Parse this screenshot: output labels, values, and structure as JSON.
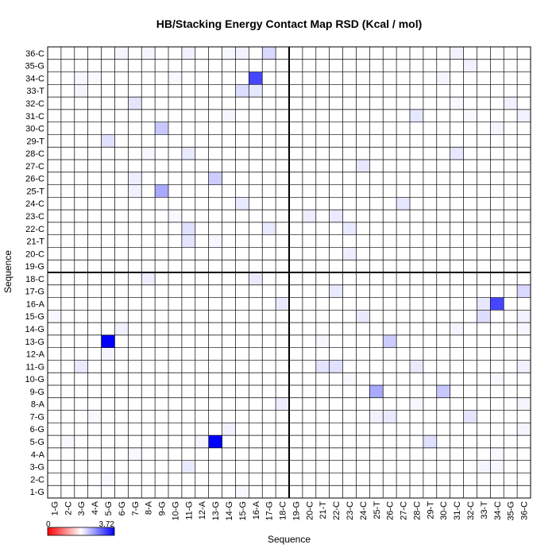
{
  "chart_data": {
    "type": "heatmap",
    "title": "HB/Stacking Energy Contact Map RSD (Kcal / mol)",
    "xlabel": "Sequence",
    "ylabel": "Sequence",
    "labels": [
      "1-G",
      "2-C",
      "3-G",
      "4-A",
      "5-G",
      "6-G",
      "7-G",
      "8-A",
      "9-G",
      "10-G",
      "11-G",
      "12-A",
      "13-G",
      "14-G",
      "15-G",
      "16-A",
      "17-G",
      "18-C",
      "19-G",
      "20-C",
      "21-T",
      "22-C",
      "23-C",
      "24-C",
      "25-T",
      "26-C",
      "27-C",
      "28-C",
      "29-T",
      "30-C",
      "31-C",
      "32-C",
      "33-T",
      "34-C",
      "35-G",
      "36-C"
    ],
    "colorbar": {
      "min_label": "0",
      "max_label": "3.72",
      "min": 0,
      "max": 3.72,
      "colors": [
        "#ff0000",
        "#ffffff",
        "#0000ff"
      ]
    },
    "grid": true,
    "dividers_after_index": [
      18
    ],
    "cells": [
      {
        "x": 5,
        "y": 13,
        "v": 3.72
      },
      {
        "x": 13,
        "y": 5,
        "v": 3.72
      },
      {
        "x": 16,
        "y": 34,
        "v": 2.7
      },
      {
        "x": 34,
        "y": 16,
        "v": 2.7
      },
      {
        "x": 9,
        "y": 25,
        "v": 1.25
      },
      {
        "x": 25,
        "y": 9,
        "v": 1.25
      },
      {
        "x": 13,
        "y": 26,
        "v": 0.75
      },
      {
        "x": 26,
        "y": 13,
        "v": 0.75
      },
      {
        "x": 9,
        "y": 30,
        "v": 0.8
      },
      {
        "x": 30,
        "y": 9,
        "v": 0.8
      },
      {
        "x": 18,
        "y": 16,
        "v": 0.3
      },
      {
        "x": 16,
        "y": 18,
        "v": 0.3
      },
      {
        "x": 17,
        "y": 36,
        "v": 0.55
      },
      {
        "x": 36,
        "y": 17,
        "v": 0.55
      },
      {
        "x": 15,
        "y": 33,
        "v": 0.5
      },
      {
        "x": 33,
        "y": 15,
        "v": 0.5
      },
      {
        "x": 16,
        "y": 33,
        "v": 0.35
      },
      {
        "x": 33,
        "y": 16,
        "v": 0.35
      },
      {
        "x": 29,
        "y": 5,
        "v": 0.45
      },
      {
        "x": 5,
        "y": 29,
        "v": 0.45
      },
      {
        "x": 11,
        "y": 21,
        "v": 0.4
      },
      {
        "x": 21,
        "y": 11,
        "v": 0.4
      },
      {
        "x": 11,
        "y": 22,
        "v": 0.45
      },
      {
        "x": 22,
        "y": 11,
        "v": 0.45
      },
      {
        "x": 11,
        "y": 28,
        "v": 0.3
      },
      {
        "x": 28,
        "y": 11,
        "v": 0.3
      },
      {
        "x": 7,
        "y": 32,
        "v": 0.3
      },
      {
        "x": 32,
        "y": 7,
        "v": 0.3
      },
      {
        "x": 7,
        "y": 26,
        "v": 0.25
      },
      {
        "x": 26,
        "y": 7,
        "v": 0.25
      },
      {
        "x": 7,
        "y": 25,
        "v": 0.2
      },
      {
        "x": 25,
        "y": 7,
        "v": 0.2
      },
      {
        "x": 3,
        "y": 11,
        "v": 0.3
      },
      {
        "x": 11,
        "y": 3,
        "v": 0.3
      },
      {
        "x": 5,
        "y": 29,
        "v": 0.3
      },
      {
        "x": 17,
        "y": 22,
        "v": 0.3
      },
      {
        "x": 22,
        "y": 17,
        "v": 0.3
      },
      {
        "x": 15,
        "y": 24,
        "v": 0.25
      },
      {
        "x": 24,
        "y": 15,
        "v": 0.25
      },
      {
        "x": 23,
        "y": 22,
        "v": 0.3
      },
      {
        "x": 22,
        "y": 23,
        "v": 0.3
      },
      {
        "x": 23,
        "y": 20,
        "v": 0.25
      },
      {
        "x": 20,
        "y": 23,
        "v": 0.25
      },
      {
        "x": 24,
        "y": 27,
        "v": 0.35
      },
      {
        "x": 27,
        "y": 24,
        "v": 0.35
      },
      {
        "x": 24,
        "y": 15,
        "v": 0.3
      },
      {
        "x": 15,
        "y": 24,
        "v": 0.3
      },
      {
        "x": 26,
        "y": 7,
        "v": 0.3
      },
      {
        "x": 27,
        "y": 24,
        "v": 0.3
      },
      {
        "x": 28,
        "y": 31,
        "v": 0.35
      },
      {
        "x": 31,
        "y": 28,
        "v": 0.35
      },
      {
        "x": 31,
        "y": 28,
        "v": 0.3
      },
      {
        "x": 32,
        "y": 7,
        "v": 0.4
      },
      {
        "x": 7,
        "y": 32,
        "v": 0.4
      },
      {
        "x": 33,
        "y": 15,
        "v": 0.45
      },
      {
        "x": 36,
        "y": 17,
        "v": 0.5
      },
      {
        "x": 36,
        "y": 15,
        "v": 0.2
      },
      {
        "x": 15,
        "y": 36,
        "v": 0.2
      },
      {
        "x": 36,
        "y": 31,
        "v": 0.2
      },
      {
        "x": 31,
        "y": 36,
        "v": 0.2
      },
      {
        "x": 8,
        "y": 18,
        "v": 0.25
      },
      {
        "x": 18,
        "y": 8,
        "v": 0.25
      },
      {
        "x": 8,
        "y": 36,
        "v": 0.15
      },
      {
        "x": 36,
        "y": 8,
        "v": 0.15
      },
      {
        "x": 6,
        "y": 36,
        "v": 0.15
      },
      {
        "x": 36,
        "y": 6,
        "v": 0.15
      },
      {
        "x": 11,
        "y": 36,
        "v": 0.2
      },
      {
        "x": 36,
        "y": 11,
        "v": 0.2
      },
      {
        "x": 14,
        "y": 36,
        "v": 0.12
      },
      {
        "x": 36,
        "y": 14,
        "v": 0.12
      },
      {
        "x": 15,
        "y": 36,
        "v": 0.2
      },
      {
        "x": 31,
        "y": 36,
        "v": 0.2
      },
      {
        "x": 4,
        "y": 34,
        "v": 0.1
      },
      {
        "x": 34,
        "y": 4,
        "v": 0.1
      },
      {
        "x": 1,
        "y": 15,
        "v": 0.12
      },
      {
        "x": 15,
        "y": 1,
        "v": 0.12
      },
      {
        "x": 14,
        "y": 6,
        "v": 0.2
      },
      {
        "x": 6,
        "y": 14,
        "v": 0.2
      },
      {
        "x": 6,
        "y": 14,
        "v": 0.15
      },
      {
        "x": 9,
        "y": 30,
        "v": 0.8
      },
      {
        "x": 30,
        "y": 9,
        "v": 0.8
      },
      {
        "x": 33,
        "y": 3,
        "v": 0.15
      },
      {
        "x": 3,
        "y": 33,
        "v": 0.15
      },
      {
        "x": 34,
        "y": 3,
        "v": 0.12
      },
      {
        "x": 3,
        "y": 34,
        "v": 0.12
      },
      {
        "x": 34,
        "y": 30,
        "v": 0.15
      },
      {
        "x": 30,
        "y": 34,
        "v": 0.15
      },
      {
        "x": 35,
        "y": 32,
        "v": 0.2
      },
      {
        "x": 32,
        "y": 35,
        "v": 0.2
      },
      {
        "x": 28,
        "y": 8,
        "v": 0.12
      },
      {
        "x": 8,
        "y": 28,
        "v": 0.12
      },
      {
        "x": 10,
        "y": 34,
        "v": 0.1
      },
      {
        "x": 34,
        "y": 10,
        "v": 0.1
      },
      {
        "x": 21,
        "y": 11,
        "v": 0.35
      },
      {
        "x": 22,
        "y": 11,
        "v": 0.4
      },
      {
        "x": 26,
        "y": 7,
        "v": 0.25
      },
      {
        "x": 25,
        "y": 7,
        "v": 0.2
      },
      {
        "x": 10,
        "y": 23,
        "v": 0.1
      },
      {
        "x": 23,
        "y": 10,
        "v": 0.1
      },
      {
        "x": 12,
        "y": 5,
        "v": 0.15
      },
      {
        "x": 5,
        "y": 12,
        "v": 0.15
      },
      {
        "x": 13,
        "y": 21,
        "v": 0.12
      },
      {
        "x": 21,
        "y": 13,
        "v": 0.12
      },
      {
        "x": 14,
        "y": 31,
        "v": 0.15
      },
      {
        "x": 31,
        "y": 14,
        "v": 0.15
      },
      {
        "x": 2,
        "y": 5,
        "v": 0.1
      },
      {
        "x": 5,
        "y": 2,
        "v": 0.1
      },
      {
        "x": 4,
        "y": 7,
        "v": 0.1
      },
      {
        "x": 7,
        "y": 4,
        "v": 0.1
      },
      {
        "x": 32,
        "y": 31,
        "v": 0.1
      },
      {
        "x": 31,
        "y": 32,
        "v": 0.1
      }
    ]
  }
}
